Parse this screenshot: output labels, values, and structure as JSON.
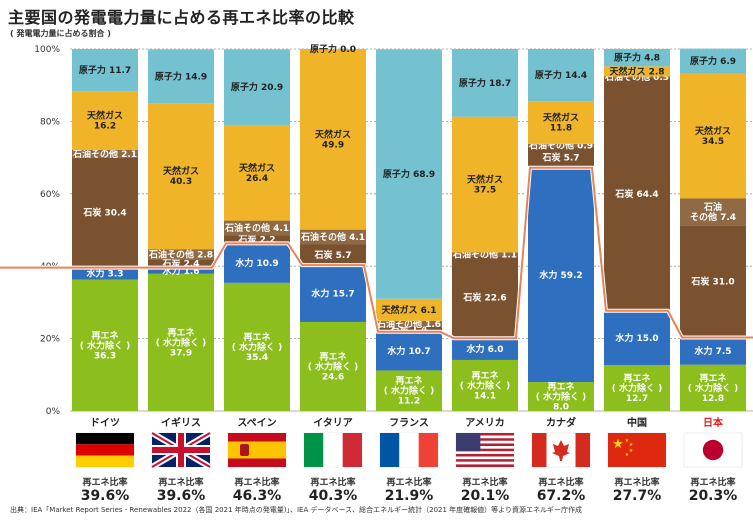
{
  "page": {
    "title": "主要国の発電電力量に占める再エネ比率の比較",
    "subtitle": "( 発電電力量に占める割合 )",
    "source": "出典：IEA「Market Report Series - Renewables 2022（各国 2021 年時点の発電量)」、IEA データベース、総合エネルギー統計（2021 年度確報値）等より資源エネルギー庁作成"
  },
  "colors": {
    "renewable": "#8cbf1e",
    "hydro": "#2f6fbf",
    "coal": "#7a5230",
    "oil": "#8f6a45",
    "gas": "#f0b429",
    "nuclear": "#74c1d0",
    "line": "#e8825a",
    "highlight": "#e02020"
  },
  "chart_data": {
    "type": "bar",
    "stacked": true,
    "title": "主要国の発電電力量に占める再エネ比率の比較",
    "ylabel": "( 発電電力量に占める割合 )",
    "ylim": [
      0,
      100
    ],
    "yticks": [
      "0%",
      "20%",
      "40%",
      "60%",
      "80%",
      "100%"
    ],
    "categories": [
      "ドイツ",
      "イギリス",
      "スペイン",
      "イタリア",
      "フランス",
      "アメリカ",
      "カナダ",
      "中国",
      "日本"
    ],
    "highlight_category": "日本",
    "series": [
      {
        "name": "再エネ（水力除く）",
        "color_key": "renewable",
        "values": [
          36.3,
          37.9,
          35.4,
          24.6,
          11.2,
          14.1,
          8.0,
          12.7,
          12.8
        ],
        "labels": [
          "再エネ\n( 水力除く )\n36.3",
          "再エネ\n( 水力除く )\n37.9",
          "再エネ\n( 水力除く )\n35.4",
          "再エネ\n( 水力除く )\n24.6",
          "再エネ\n( 水力除く )\n11.2",
          "再エネ\n( 水力除く )\n14.1",
          "再エネ\n( 水力除く )\n8.0",
          "再エネ\n( 水力除く )\n12.7",
          "再エネ\n( 水力除く )\n12.8"
        ]
      },
      {
        "name": "水力",
        "color_key": "hydro",
        "values": [
          3.3,
          1.6,
          10.9,
          15.7,
          10.7,
          6.0,
          59.2,
          15.0,
          7.5
        ],
        "labels": [
          "水力 3.3",
          "水力 1.6",
          "水力 10.9",
          "水力 15.7",
          "水力 10.7",
          "水力 6.0",
          "水力 59.2",
          "水力 15.0",
          "水力 7.5"
        ]
      },
      {
        "name": "石炭",
        "color_key": "coal",
        "values": [
          30.4,
          2.4,
          2.2,
          5.7,
          1.4,
          22.6,
          5.7,
          64.4,
          31.0
        ],
        "labels": [
          "石炭 30.4",
          "石炭 2.4",
          "石炭 2.2",
          "石炭 5.7",
          "石炭 1.4",
          "石炭 22.6",
          "石炭 5.7",
          "石炭 64.4",
          "石炭 31.0"
        ]
      },
      {
        "name": "石油その他",
        "color_key": "oil",
        "values": [
          2.1,
          2.8,
          4.1,
          4.1,
          1.6,
          1.1,
          0.9,
          0.3,
          7.4
        ],
        "labels": [
          "石油その他 2.1",
          "石油その他 2.8",
          "石油その他 4.1",
          "石油その他 4.1",
          "石油その他 1.6",
          "石油その他 1.1",
          "石油その他 0.9",
          "石油その他 0.3",
          "石油\nその他 7.4"
        ]
      },
      {
        "name": "天然ガス",
        "color_key": "gas",
        "values": [
          16.2,
          40.3,
          26.4,
          49.9,
          6.1,
          37.5,
          11.8,
          2.8,
          34.5
        ],
        "labels": [
          "天然ガス\n16.2",
          "天然ガス\n40.3",
          "天然ガス\n26.4",
          "天然ガス\n49.9",
          "天然ガス 6.1",
          "天然ガス\n37.5",
          "天然ガス\n11.8",
          "天然ガス 2.8",
          "天然ガス\n34.5"
        ]
      },
      {
        "name": "原子力",
        "color_key": "nuclear",
        "values": [
          11.7,
          14.9,
          20.9,
          0.0,
          68.9,
          18.7,
          14.4,
          4.8,
          6.9
        ],
        "labels": [
          "原子力 11.7",
          "原子力 14.9",
          "原子力 20.9",
          "原子力 0.0",
          "原子力 68.9",
          "原子力 18.7",
          "原子力 14.4",
          "原子力 4.8",
          "原子力 6.9"
        ]
      }
    ],
    "renewable_ratio_label": "再エネ比率",
    "renewable_ratio": [
      "39.6%",
      "39.6%",
      "46.3%",
      "40.3%",
      "21.9%",
      "20.1%",
      "67.2%",
      "27.7%",
      "20.3%"
    ],
    "renewable_ratio_values": [
      39.6,
      39.6,
      46.3,
      40.3,
      21.9,
      20.1,
      67.2,
      27.7,
      20.3
    ],
    "flags": [
      "germany-flag",
      "uk-flag",
      "spain-flag",
      "italy-flag",
      "france-flag",
      "usa-flag",
      "canada-flag",
      "china-flag",
      "japan-flag"
    ]
  }
}
